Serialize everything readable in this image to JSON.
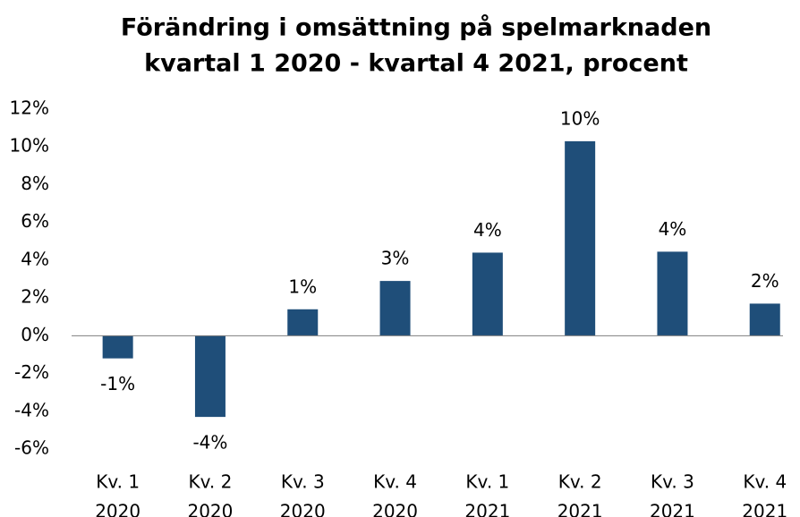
{
  "chart_data": {
    "type": "bar",
    "title": "Förändring i omsättning på spelmarknaden",
    "subtitle": "kvartal 1 2020 - kvartal 4 2021, procent",
    "categories": [
      [
        "Kv. 1",
        "2020"
      ],
      [
        "Kv. 2",
        "2020"
      ],
      [
        "Kv. 3",
        "2020"
      ],
      [
        "Kv. 4",
        "2020"
      ],
      [
        "Kv. 1",
        "2021"
      ],
      [
        "Kv. 2",
        "2021"
      ],
      [
        "Kv. 3",
        "2021"
      ],
      [
        "Kv. 4",
        "2021"
      ]
    ],
    "values": [
      -1.2,
      -4.3,
      1.4,
      2.9,
      4.4,
      10.3,
      4.45,
      1.7
    ],
    "value_labels": [
      "-1%",
      "-4%",
      "1%",
      "3%",
      "4%",
      "10%",
      "4%",
      "2%"
    ],
    "color": "#1f4e79",
    "ylim": [
      -6,
      12
    ],
    "yticks": [
      {
        "value": -6,
        "label": "-6%"
      },
      {
        "value": -4,
        "label": "-4%"
      },
      {
        "value": -2,
        "label": "-2%"
      },
      {
        "value": 0,
        "label": "0%"
      },
      {
        "value": 2,
        "label": "2%"
      },
      {
        "value": 4,
        "label": "4%"
      },
      {
        "value": 6,
        "label": "6%"
      },
      {
        "value": 8,
        "label": "8%"
      },
      {
        "value": 10,
        "label": "10%"
      },
      {
        "value": 12,
        "label": "12%"
      }
    ],
    "grid": false
  }
}
